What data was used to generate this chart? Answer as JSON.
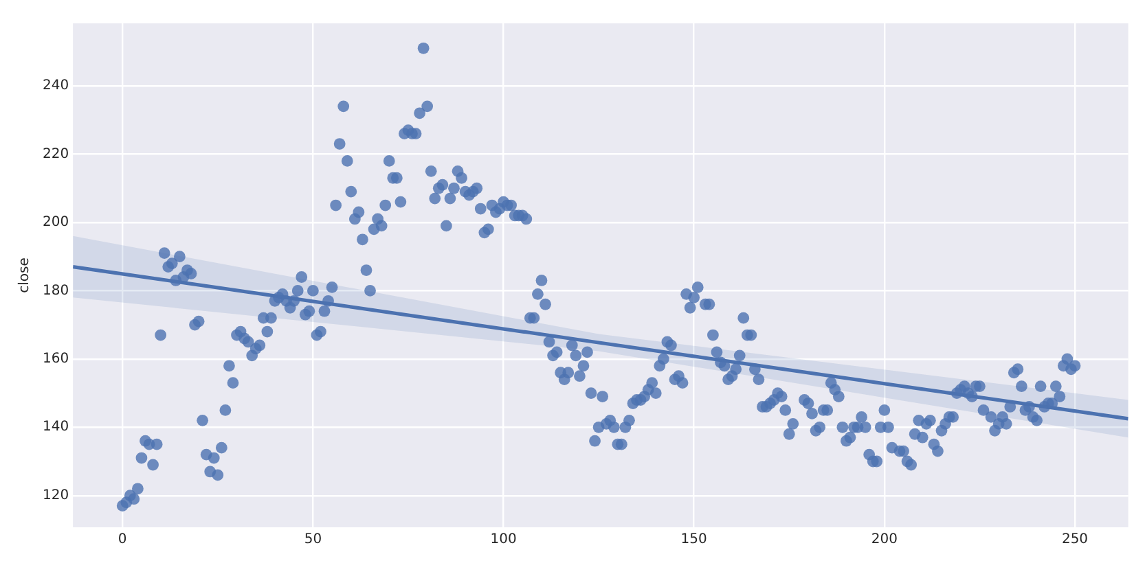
{
  "chart_data": {
    "type": "scatter",
    "ylabel": "close",
    "xlim": [
      -13,
      264
    ],
    "ylim": [
      110.7,
      258.3
    ],
    "xticks": [
      0,
      50,
      100,
      150,
      200,
      250
    ],
    "yticks": [
      120,
      140,
      160,
      180,
      200,
      220,
      240
    ],
    "grid": true,
    "legend": false,
    "marker": "circle",
    "series": [
      {
        "color": "#4c72b0",
        "x": [
          0,
          1,
          2,
          3,
          4,
          5,
          6,
          7,
          8,
          9,
          10,
          11,
          12,
          13,
          14,
          15,
          16,
          17,
          18,
          19,
          20,
          21,
          22,
          23,
          24,
          25,
          26,
          27,
          28,
          29,
          30,
          31,
          32,
          33,
          34,
          35,
          36,
          37,
          38,
          39,
          40,
          41,
          42,
          43,
          44,
          45,
          46,
          47,
          48,
          49,
          50,
          51,
          52,
          53,
          54,
          55,
          56,
          57,
          58,
          59,
          60,
          61,
          62,
          63,
          64,
          65,
          66,
          67,
          68,
          69,
          70,
          71,
          72,
          73,
          74,
          75,
          76,
          77,
          78,
          79,
          80,
          81,
          82,
          83,
          84,
          85,
          86,
          87,
          88,
          89,
          90,
          91,
          92,
          93,
          94,
          95,
          96,
          97,
          98,
          99,
          100,
          101,
          102,
          103,
          104,
          105,
          106,
          107,
          108,
          109,
          110,
          111,
          112,
          113,
          114,
          115,
          116,
          117,
          118,
          119,
          120,
          121,
          122,
          123,
          124,
          125,
          126,
          127,
          128,
          129,
          130,
          131,
          132,
          133,
          134,
          135,
          136,
          137,
          138,
          139,
          140,
          141,
          142,
          143,
          144,
          145,
          146,
          147,
          148,
          149,
          150,
          151,
          153,
          154,
          155,
          156,
          157,
          158,
          159,
          160,
          161,
          162,
          163,
          164,
          165,
          166,
          167,
          168,
          169,
          170,
          171,
          172,
          173,
          174,
          175,
          176,
          179,
          180,
          181,
          182,
          183,
          184,
          185,
          186,
          187,
          188,
          189,
          190,
          191,
          192,
          193,
          194,
          195,
          196,
          197,
          198,
          199,
          200,
          201,
          202,
          204,
          205,
          206,
          207,
          208,
          209,
          210,
          211,
          212,
          213,
          214,
          215,
          216,
          217,
          218,
          219,
          220,
          221,
          222,
          223,
          224,
          225,
          226,
          228,
          229,
          230,
          231,
          232,
          233,
          234,
          235,
          236,
          237,
          238,
          239,
          240,
          241,
          242,
          243,
          244,
          245,
          246,
          247,
          248,
          249,
          250
        ],
        "values": [
          117,
          118,
          120,
          119,
          122,
          131,
          136,
          135,
          129,
          135,
          167,
          191,
          187,
          188,
          183,
          190,
          184,
          186,
          185,
          170,
          171,
          142,
          132,
          127,
          131,
          126,
          134,
          145,
          158,
          153,
          167,
          168,
          166,
          165,
          161,
          163,
          164,
          172,
          168,
          172,
          177,
          178,
          179,
          177,
          175,
          177,
          180,
          184,
          173,
          174,
          180,
          167,
          168,
          174,
          177,
          181,
          205,
          223,
          234,
          218,
          209,
          201,
          203,
          195,
          186,
          180,
          198,
          201,
          199,
          205,
          218,
          213,
          213,
          206,
          226,
          227,
          226,
          226,
          232,
          251,
          234,
          215,
          207,
          210,
          211,
          199,
          207,
          210,
          215,
          213,
          209,
          208,
          209,
          210,
          204,
          197,
          198,
          205,
          203,
          204,
          206,
          205,
          205,
          202,
          202,
          202,
          201,
          172,
          172,
          179,
          183,
          176,
          165,
          161,
          162,
          156,
          154,
          156,
          164,
          161,
          155,
          158,
          162,
          150,
          136,
          140,
          149,
          141,
          142,
          140,
          135,
          135,
          140,
          142,
          147,
          148,
          148,
          149,
          151,
          153,
          150,
          158,
          160,
          165,
          164,
          154,
          155,
          153,
          179,
          175,
          178,
          181,
          176,
          176,
          167,
          162,
          159,
          158,
          154,
          155,
          157,
          161,
          172,
          167,
          167,
          157,
          154,
          146,
          146,
          147,
          148,
          150,
          149,
          145,
          138,
          141,
          148,
          147,
          144,
          139,
          140,
          145,
          145,
          153,
          151,
          149,
          140,
          136,
          137,
          140,
          140,
          143,
          140,
          132,
          130,
          130,
          140,
          145,
          140,
          134,
          133,
          133,
          130,
          129,
          138,
          142,
          137,
          141,
          142,
          135,
          133,
          139,
          141,
          143,
          143,
          150,
          151,
          152,
          150,
          149,
          152,
          152,
          145,
          143,
          139,
          141,
          143,
          141,
          146,
          156,
          157,
          152,
          145,
          146,
          143,
          142,
          152,
          146,
          147,
          147,
          152,
          149,
          158,
          160,
          157,
          158
        ]
      },
      {
        "type": "line",
        "color": "#4c72b0",
        "marker": "none",
        "line_style": "solid",
        "x": [
          -13,
          125,
          264
        ],
        "values": [
          187,
          164.8,
          142.5
        ],
        "lower": [
          178,
          162.3,
          137
        ],
        "upper": [
          196,
          167.3,
          148
        ]
      }
    ]
  }
}
